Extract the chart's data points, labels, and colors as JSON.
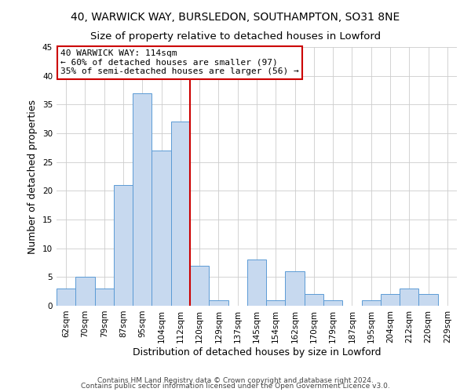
{
  "title": "40, WARWICK WAY, BURSLEDON, SOUTHAMPTON, SO31 8NE",
  "subtitle": "Size of property relative to detached houses in Lowford",
  "xlabel": "Distribution of detached houses by size in Lowford",
  "ylabel": "Number of detached properties",
  "bin_labels": [
    "62sqm",
    "70sqm",
    "79sqm",
    "87sqm",
    "95sqm",
    "104sqm",
    "112sqm",
    "120sqm",
    "129sqm",
    "137sqm",
    "145sqm",
    "154sqm",
    "162sqm",
    "170sqm",
    "179sqm",
    "187sqm",
    "195sqm",
    "204sqm",
    "212sqm",
    "220sqm",
    "229sqm"
  ],
  "bar_heights": [
    3,
    5,
    3,
    21,
    37,
    27,
    32,
    7,
    1,
    0,
    8,
    1,
    6,
    2,
    1,
    0,
    1,
    2,
    3,
    2,
    0
  ],
  "bar_color": "#c7d9ef",
  "bar_edge_color": "#5b9bd5",
  "red_line_index": 6,
  "red_line_color": "#cc0000",
  "ylim": [
    0,
    45
  ],
  "yticks": [
    0,
    5,
    10,
    15,
    20,
    25,
    30,
    35,
    40,
    45
  ],
  "annotation_title": "40 WARWICK WAY: 114sqm",
  "annotation_line1": "← 60% of detached houses are smaller (97)",
  "annotation_line2": "35% of semi-detached houses are larger (56) →",
  "annotation_box_color": "#ffffff",
  "annotation_box_edge_color": "#cc0000",
  "footer_line1": "Contains HM Land Registry data © Crown copyright and database right 2024.",
  "footer_line2": "Contains public sector information licensed under the Open Government Licence v3.0.",
  "background_color": "#ffffff",
  "grid_color": "#cccccc",
  "title_fontsize": 10,
  "subtitle_fontsize": 9.5,
  "axis_label_fontsize": 9,
  "tick_fontsize": 7.5,
  "annotation_fontsize": 8,
  "footer_fontsize": 6.5
}
